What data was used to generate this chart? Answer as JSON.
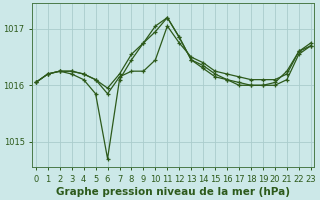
{
  "title": "Graphe pression niveau de la mer (hPa)",
  "x_labels": [
    "0",
    "1",
    "2",
    "3",
    "4",
    "5",
    "6",
    "7",
    "8",
    "9",
    "10",
    "11",
    "12",
    "13",
    "14",
    "15",
    "16",
    "17",
    "18",
    "19",
    "20",
    "21",
    "22",
    "23"
  ],
  "ylim": [
    1014.55,
    1017.45
  ],
  "yticks": [
    1015,
    1016,
    1017
  ],
  "xlim": [
    -0.3,
    23.3
  ],
  "bg_color": "#cce8e8",
  "grid_color": "#aacccc",
  "line_color": "#2d5a1b",
  "marker": "+",
  "line_width": 0.9,
  "marker_size": 3.5,
  "series1": [
    1016.05,
    1016.2,
    1016.25,
    1016.25,
    1016.2,
    1016.1,
    1015.85,
    1016.15,
    1016.25,
    1016.25,
    1016.45,
    1017.05,
    1016.75,
    1016.5,
    1016.4,
    1016.25,
    1016.2,
    1016.15,
    1016.1,
    1016.1,
    1016.1,
    1016.2,
    1016.6,
    1016.7
  ],
  "series2": [
    1016.05,
    1016.2,
    1016.25,
    1016.2,
    1016.1,
    1015.85,
    1014.7,
    1016.1,
    1016.45,
    1016.75,
    1016.95,
    1017.2,
    1016.85,
    1016.45,
    1016.3,
    1016.15,
    1016.1,
    1016.0,
    1016.0,
    1016.0,
    1016.0,
    1016.1,
    1016.55,
    1016.7
  ],
  "series3": [
    1016.05,
    1016.2,
    1016.25,
    1016.25,
    1016.2,
    1016.1,
    1015.95,
    1016.2,
    1016.55,
    1016.75,
    1017.05,
    1017.2,
    1016.85,
    1016.45,
    1016.35,
    1016.2,
    1016.1,
    1016.05,
    1016.0,
    1016.0,
    1016.05,
    1016.25,
    1016.6,
    1016.75
  ],
  "title_fontsize": 7.5,
  "tick_fontsize": 6.0,
  "ylabel_color": "#2d5a1b",
  "spine_color": "#4a7a4a"
}
